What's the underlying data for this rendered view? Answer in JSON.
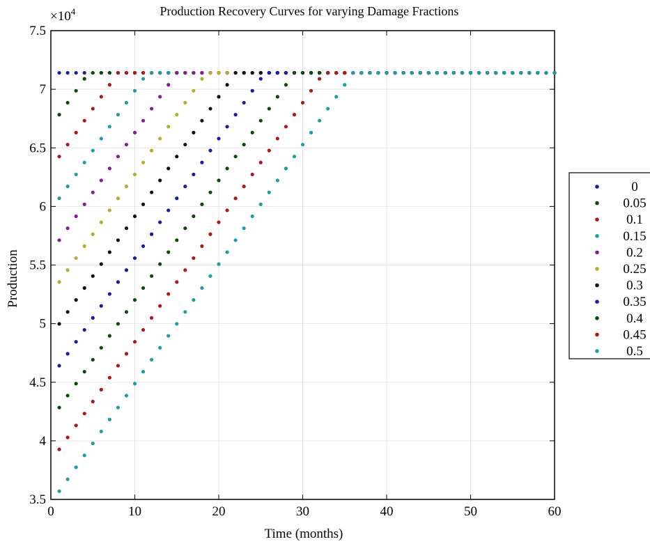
{
  "chart_data": {
    "type": "scatter",
    "title": "Production Recovery Curves for varying Damage Fractions",
    "xlabel": "Time (months)",
    "ylabel": "Production",
    "exponent_label": "×10",
    "exponent_power": "4",
    "xlim": [
      0,
      60
    ],
    "ylim": [
      35000,
      75000
    ],
    "x_ticks": [
      "0",
      "10",
      "20",
      "30",
      "40",
      "50",
      "60"
    ],
    "y_ticks": [
      "3.5",
      "4",
      "4.5",
      "5",
      "5.5",
      "6",
      "6.5",
      "7",
      "7.5"
    ],
    "x_tick_values": [
      0,
      10,
      20,
      30,
      40,
      50,
      60
    ],
    "y_tick_values": [
      35000,
      40000,
      45000,
      50000,
      55000,
      60000,
      65000,
      70000,
      75000
    ],
    "grid": true,
    "legend_position": "outside-right",
    "x_range": [
      1,
      60
    ],
    "plateau": 71400,
    "recovery_rate_per_month": 1020,
    "series": [
      {
        "name": "0",
        "color": "#1a1aa8",
        "start": 71400
      },
      {
        "name": "0.05",
        "color": "#0c4a0c",
        "start": 67830
      },
      {
        "name": "0.1",
        "color": "#b01818",
        "start": 64260
      },
      {
        "name": "0.15",
        "color": "#1aa0a0",
        "start": 60690
      },
      {
        "name": "0.2",
        "color": "#8a1a9a",
        "start": 57120
      },
      {
        "name": "0.25",
        "color": "#b0b02a",
        "start": 53550
      },
      {
        "name": "0.3",
        "color": "#111111",
        "start": 49980
      },
      {
        "name": "0.35",
        "color": "#1a1aa8",
        "start": 46410
      },
      {
        "name": "0.4",
        "color": "#0c4a0c",
        "start": 42840
      },
      {
        "name": "0.45",
        "color": "#b01818",
        "start": 39270
      },
      {
        "name": "0.5",
        "color": "#1aa0a0",
        "start": 35700
      }
    ]
  }
}
